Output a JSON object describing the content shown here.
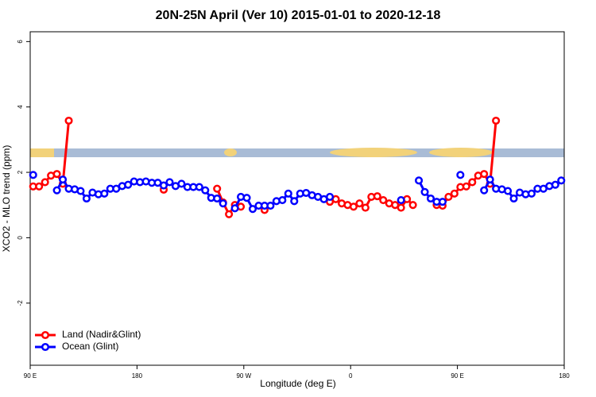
{
  "chart_data": {
    "type": "line",
    "title": "20N-25N April (Ver 10)   2015-01-01 to 2020-12-18",
    "x_label": "Longitude (deg E)",
    "y_label": "XCO2 - MLO trend (ppm)",
    "x": [
      92.5,
      97.5,
      102.5,
      107.5,
      112.5,
      117.5,
      122.5,
      127.5,
      132.5,
      137.5,
      142.5,
      147.5,
      152.5,
      157.5,
      162.5,
      167.5,
      172.5,
      177.5,
      182.5,
      187.5,
      192.5,
      197.5,
      202.5,
      207.5,
      212.5,
      217.5,
      222.5,
      227.5,
      232.5,
      237.5,
      242.5,
      247.5,
      252.5,
      257.5,
      262.5,
      267.5,
      272.5,
      277.5,
      282.5,
      287.5,
      292.5,
      297.5,
      302.5,
      307.5,
      312.5,
      317.5,
      322.5,
      327.5,
      332.5,
      337.5,
      342.5,
      347.5,
      352.5,
      357.5,
      362.5,
      367.5,
      372.5,
      377.5,
      382.5,
      387.5,
      392.5,
      397.5,
      402.5,
      407.5,
      412.5,
      417.5,
      422.5,
      427.5,
      432.5,
      437.5,
      442.5,
      447.5,
      452.5,
      457.5,
      462.5,
      467.5,
      472.5,
      477.5,
      482.5,
      487.5,
      492.5,
      497.5,
      502.5,
      507.5,
      512.5,
      517.5,
      522.5,
      527.5,
      532.5,
      537.5
    ],
    "series": [
      {
        "name": "Land (Nadir&Glint)",
        "color": "#ff0000",
        "values": [
          1.57,
          1.57,
          1.7,
          1.9,
          1.95,
          1.65,
          3.58,
          null,
          null,
          null,
          null,
          null,
          null,
          null,
          null,
          null,
          null,
          null,
          null,
          null,
          null,
          null,
          1.47,
          null,
          null,
          null,
          null,
          null,
          null,
          null,
          null,
          1.5,
          1.08,
          0.72,
          1.0,
          0.95,
          null,
          null,
          null,
          0.85,
          null,
          null,
          null,
          null,
          null,
          null,
          null,
          null,
          null,
          null,
          1.1,
          1.18,
          1.05,
          1.0,
          0.95,
          1.05,
          0.92,
          1.25,
          1.27,
          1.15,
          1.05,
          1.0,
          0.92,
          1.18,
          1.0,
          null,
          null,
          null,
          1.0,
          0.98,
          1.25,
          1.35,
          1.55,
          1.57,
          1.7,
          1.9,
          1.95,
          1.65,
          3.58,
          null,
          null,
          null,
          null,
          null,
          null,
          null,
          null,
          null,
          null,
          null
        ]
      },
      {
        "name": "Ocean (Glint)",
        "color": "#0000ff",
        "values": [
          1.92,
          null,
          null,
          null,
          1.45,
          1.78,
          1.5,
          1.48,
          1.43,
          1.2,
          1.38,
          1.33,
          1.35,
          1.5,
          1.5,
          1.58,
          1.62,
          1.72,
          1.7,
          1.72,
          1.68,
          1.68,
          1.6,
          1.7,
          1.58,
          1.65,
          1.55,
          1.55,
          1.55,
          1.45,
          1.22,
          1.2,
          1.05,
          null,
          0.9,
          1.25,
          1.22,
          0.88,
          0.98,
          0.98,
          0.98,
          1.12,
          1.15,
          1.35,
          1.12,
          1.35,
          1.37,
          1.3,
          1.25,
          1.18,
          1.25,
          null,
          null,
          null,
          null,
          null,
          null,
          null,
          null,
          null,
          null,
          null,
          1.15,
          null,
          null,
          1.75,
          1.4,
          1.2,
          1.1,
          1.1,
          null,
          null,
          1.92,
          null,
          null,
          null,
          1.45,
          1.78,
          1.5,
          1.48,
          1.43,
          1.2,
          1.38,
          1.33,
          1.35,
          1.5,
          1.5,
          1.58,
          1.62,
          1.75
        ]
      }
    ],
    "xlim": [
      90,
      540
    ],
    "xticks": [
      {
        "value": 90,
        "label": "90 E"
      },
      180,
      {
        "value": 270,
        "label": "90 W"
      },
      {
        "value": 360,
        "label": "0"
      },
      {
        "value": 450,
        "label": "90 E"
      },
      {
        "value": 540,
        "label": "180"
      }
    ],
    "ylim": [
      -3.9,
      6.3
    ],
    "yticks": [
      -2,
      0,
      2,
      4,
      6
    ],
    "legend": "bottom-left"
  }
}
